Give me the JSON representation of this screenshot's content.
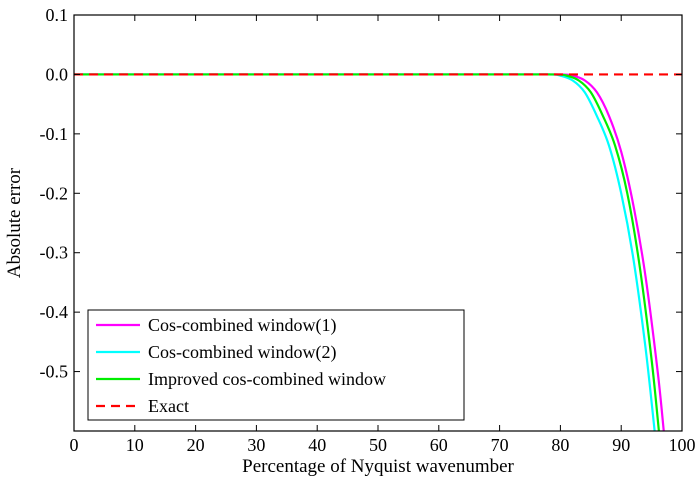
{
  "chart_data": {
    "type": "line",
    "title": "",
    "xlabel": "Percentage of Nyquist wavenumber",
    "ylabel": "Absolute error",
    "xlim": [
      0,
      100
    ],
    "ylim": [
      -0.6,
      0.1
    ],
    "xticks": [
      0,
      10,
      20,
      30,
      40,
      50,
      60,
      70,
      80,
      90,
      100
    ],
    "yticks": [
      0.1,
      0.0,
      -0.1,
      -0.2,
      -0.3,
      -0.4,
      -0.5
    ],
    "ytick_labels": [
      "0.1",
      "0.0",
      "-0.1",
      "-0.2",
      "-0.3",
      "-0.4",
      "-0.5"
    ],
    "xtick_labels": [
      "0",
      "10",
      "20",
      "30",
      "40",
      "50",
      "60",
      "70",
      "80",
      "90",
      "100"
    ],
    "grid": false,
    "legend_position": "bottom-left",
    "series": [
      {
        "name": "Cos-combined window(1)",
        "color": "#ff00ff",
        "style": "solid",
        "x": [
          0,
          70,
          80,
          82,
          84,
          86,
          88,
          90,
          92,
          94,
          96,
          97
        ],
        "y": [
          0,
          0,
          0,
          -0.002,
          -0.01,
          -0.03,
          -0.07,
          -0.13,
          -0.22,
          -0.34,
          -0.5,
          -0.6
        ]
      },
      {
        "name": "Cos-combined window(2)",
        "color": "#00ffff",
        "style": "solid",
        "x": [
          0,
          70,
          78,
          80,
          82,
          84,
          86,
          88,
          90,
          92,
          94,
          95.5
        ],
        "y": [
          0,
          0,
          0,
          -0.002,
          -0.01,
          -0.03,
          -0.07,
          -0.12,
          -0.2,
          -0.31,
          -0.46,
          -0.6
        ]
      },
      {
        "name": "Improved cos-combined window",
        "color": "#00ee00",
        "style": "solid",
        "x": [
          0,
          70,
          79,
          81,
          83,
          85,
          87,
          89,
          91,
          93,
          95,
          96.2
        ],
        "y": [
          0,
          0,
          0,
          -0.002,
          -0.01,
          -0.03,
          -0.07,
          -0.12,
          -0.2,
          -0.32,
          -0.48,
          -0.6
        ]
      },
      {
        "name": "Exact",
        "color": "#ff0000",
        "style": "dashed",
        "x": [
          0,
          100
        ],
        "y": [
          0,
          0
        ]
      }
    ]
  }
}
